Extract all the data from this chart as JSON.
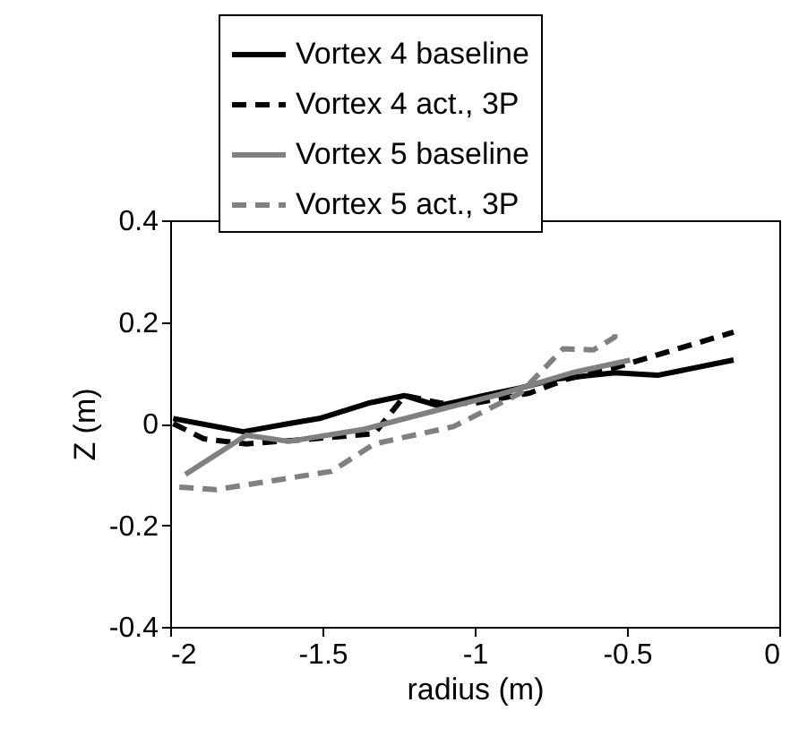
{
  "chart_data": {
    "type": "line",
    "xlabel": "radius (m)",
    "ylabel": "Z (m)",
    "xlim": [
      -2,
      0
    ],
    "xticks": [
      -2,
      -1.5,
      -1,
      -0.5,
      0
    ],
    "ylim": [
      -0.4,
      0.4
    ],
    "yticks": [
      -0.4,
      -0.2,
      0,
      0.2,
      0.4
    ],
    "grid": false,
    "legend": "top",
    "marker": "none",
    "series": [
      {
        "name": "Vortex 4 baseline",
        "color": "#000000",
        "line_style": "solid",
        "x": [
          -1.99,
          -1.76,
          -1.61,
          -1.51,
          -1.35,
          -1.23,
          -1.12,
          -0.97,
          -0.85,
          -0.74,
          -0.54,
          -0.4,
          -0.15
        ],
        "values": [
          0.01,
          -0.016,
          0.0,
          0.01,
          0.04,
          0.055,
          0.035,
          0.055,
          0.07,
          0.087,
          0.1,
          0.095,
          0.125
        ]
      },
      {
        "name": "Vortex 4 act., 3P",
        "color": "#000000",
        "line_style": "dashed",
        "x": [
          -1.99,
          -1.89,
          -1.75,
          -1.53,
          -1.33,
          -1.29,
          -1.23,
          -1.11,
          -1.0,
          -0.82,
          -0.7,
          -0.54,
          -0.15
        ],
        "values": [
          0.0,
          -0.03,
          -0.04,
          -0.03,
          -0.02,
          0.01,
          0.055,
          0.04,
          0.04,
          0.06,
          0.087,
          0.11,
          0.18
        ]
      },
      {
        "name": "Vortex 5 baseline",
        "color": "#808080",
        "line_style": "solid",
        "x": [
          -1.95,
          -1.75,
          -1.61,
          -1.37,
          -1.1,
          -0.92,
          -0.68,
          -0.49
        ],
        "values": [
          -0.1,
          -0.023,
          -0.035,
          -0.012,
          0.03,
          0.057,
          0.1,
          0.125
        ]
      },
      {
        "name": "Vortex 5 act., 3P",
        "color": "#808080",
        "line_style": "dashed",
        "x": [
          -1.97,
          -1.85,
          -1.47,
          -1.33,
          -1.07,
          -0.85,
          -0.71,
          -0.61,
          -0.54,
          -0.54
        ],
        "values": [
          -0.125,
          -0.13,
          -0.094,
          -0.04,
          -0.006,
          0.06,
          0.147,
          0.145,
          0.17,
          0.19
        ]
      }
    ]
  }
}
